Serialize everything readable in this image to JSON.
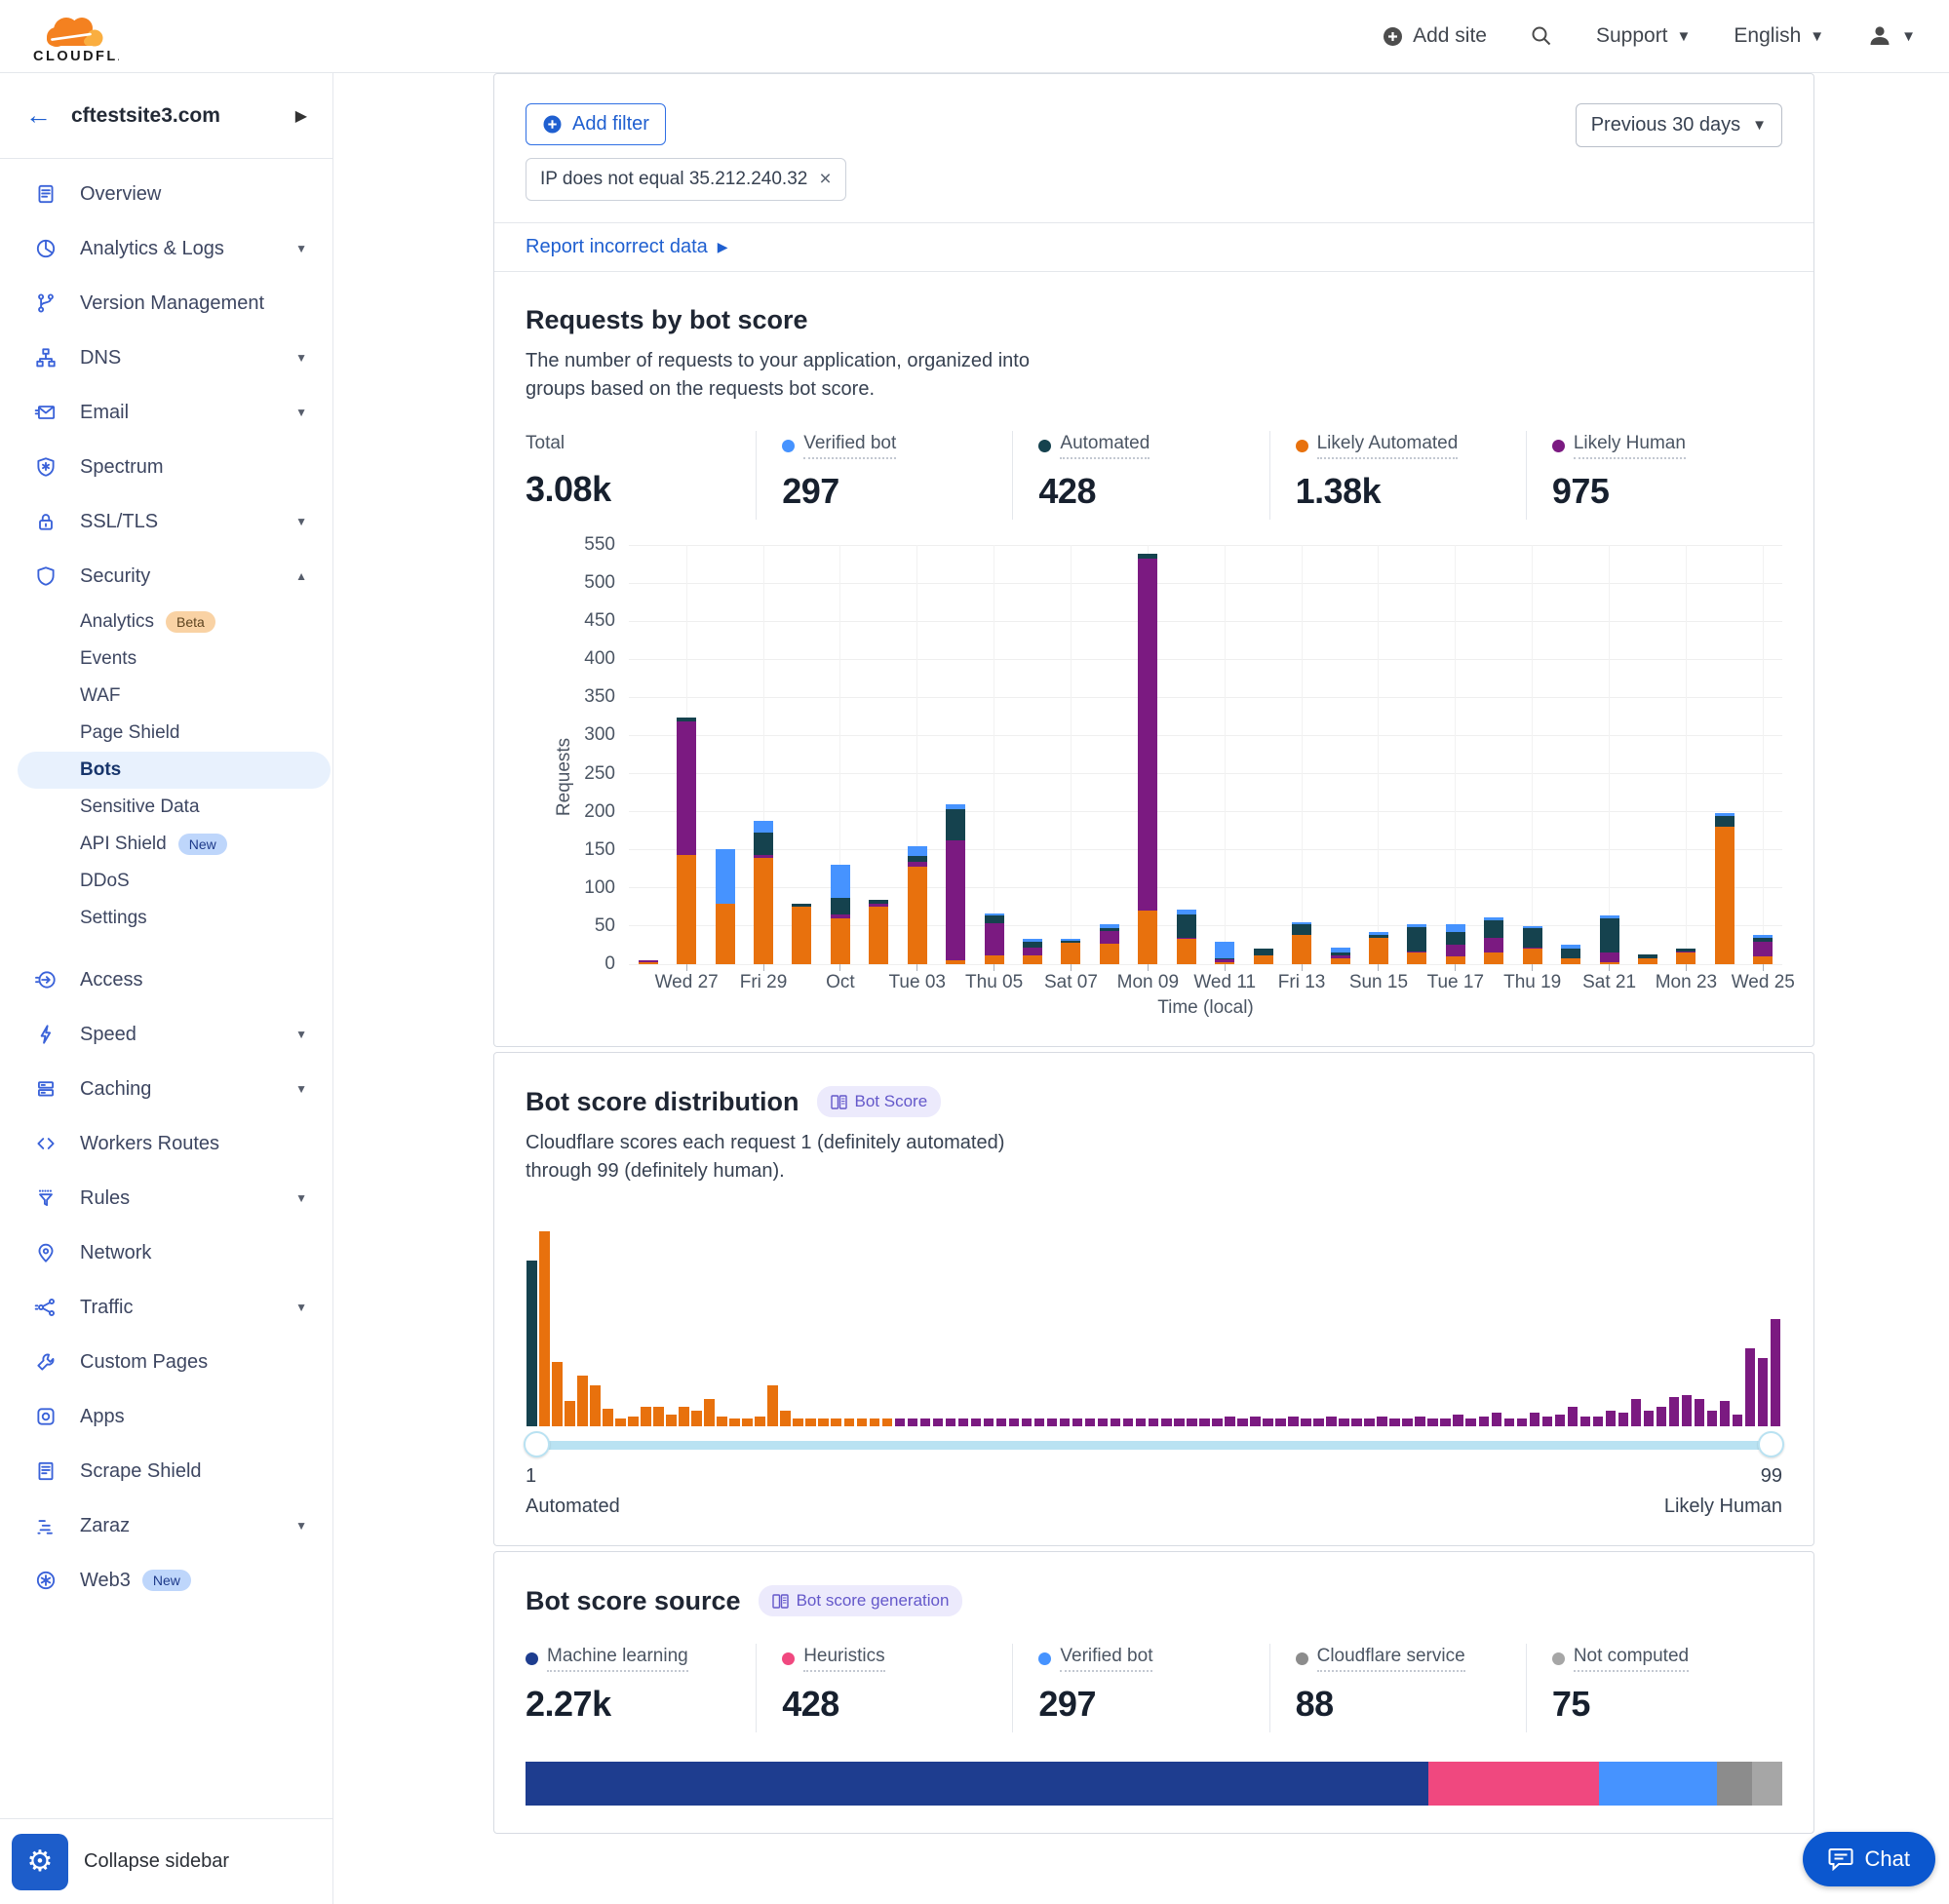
{
  "colors": {
    "verified_bot": "#4693ff",
    "automated": "#15424e",
    "likely_automated": "#e8710d",
    "likely_human": "#7b1a81",
    "machine_learning": "#1e3d8f",
    "heuristics": "#f0487f",
    "cf_service": "#8c8c8c",
    "not_computed": "#a6a6a6",
    "accent_blue": "#1f5fd0",
    "slider_track": "#b9e2f2"
  },
  "header": {
    "brand": "CLOUDFLARE",
    "add_site": "Add site",
    "support": "Support",
    "language": "English"
  },
  "sidebar": {
    "site": "cftestsite3.com",
    "collapse_label": "Collapse sidebar",
    "items": [
      {
        "label": "Overview",
        "icon": "clipboard"
      },
      {
        "label": "Analytics & Logs",
        "icon": "pie-chart",
        "chevron": "down"
      },
      {
        "label": "Version Management",
        "icon": "git-branch"
      },
      {
        "label": "DNS",
        "icon": "sitemap",
        "chevron": "down"
      },
      {
        "label": "Email",
        "icon": "envelope",
        "chevron": "down"
      },
      {
        "label": "Spectrum",
        "icon": "shield-star"
      },
      {
        "label": "SSL/TLS",
        "icon": "lock",
        "chevron": "down"
      },
      {
        "label": "Security",
        "icon": "shield",
        "chevron": "up",
        "children": [
          {
            "label": "Analytics",
            "badge": {
              "text": "Beta",
              "style": "beta"
            }
          },
          {
            "label": "Events"
          },
          {
            "label": "WAF"
          },
          {
            "label": "Page Shield"
          },
          {
            "label": "Bots",
            "selected": true
          },
          {
            "label": "Sensitive Data"
          },
          {
            "label": "API Shield",
            "badge": {
              "text": "New",
              "style": "new"
            }
          },
          {
            "label": "DDoS"
          },
          {
            "label": "Settings"
          }
        ]
      },
      {
        "label": "Access",
        "icon": "login-arrow",
        "gap": true
      },
      {
        "label": "Speed",
        "icon": "lightning",
        "chevron": "down"
      },
      {
        "label": "Caching",
        "icon": "server-stack",
        "chevron": "down"
      },
      {
        "label": "Workers Routes",
        "icon": "code-brackets"
      },
      {
        "label": "Rules",
        "icon": "funnel",
        "chevron": "down"
      },
      {
        "label": "Network",
        "icon": "map-pin"
      },
      {
        "label": "Traffic",
        "icon": "share-network",
        "chevron": "down"
      },
      {
        "label": "Custom Pages",
        "icon": "wrench"
      },
      {
        "label": "Apps",
        "icon": "app-window"
      },
      {
        "label": "Scrape Shield",
        "icon": "document"
      },
      {
        "label": "Zaraz",
        "icon": "stacked-bars",
        "chevron": "down"
      },
      {
        "label": "Web3",
        "icon": "snowflake",
        "badge": {
          "text": "New",
          "style": "new"
        }
      }
    ]
  },
  "filters": {
    "add_filter": "Add filter",
    "chip": "IP does not equal 35.212.240.32",
    "date_range": "Previous 30 days"
  },
  "report_link": "Report incorrect data",
  "requests": {
    "title": "Requests by bot score",
    "description": "The number of requests to your application, organized into groups based on the requests bot score.",
    "stats": [
      {
        "label": "Total",
        "value": "3.08k",
        "color": null
      },
      {
        "label": "Verified bot",
        "value": "297",
        "color": "verified_bot"
      },
      {
        "label": "Automated",
        "value": "428",
        "color": "automated"
      },
      {
        "label": "Likely Automated",
        "value": "1.38k",
        "color": "likely_automated"
      },
      {
        "label": "Likely Human",
        "value": "975",
        "color": "likely_human"
      }
    ]
  },
  "distribution": {
    "title": "Bot score distribution",
    "badge": "Bot Score",
    "description": "Cloudflare scores each request 1 (definitely automated) through 99 (definitely human).",
    "slider_min": "1",
    "slider_max": "99",
    "left_label": "Automated",
    "right_label": "Likely Human"
  },
  "source": {
    "title": "Bot score source",
    "badge": "Bot score generation",
    "stats": [
      {
        "label": "Machine learning",
        "value": "2.27k",
        "color": "machine_learning"
      },
      {
        "label": "Heuristics",
        "value": "428",
        "color": "heuristics"
      },
      {
        "label": "Verified bot",
        "value": "297",
        "color": "verified_bot"
      },
      {
        "label": "Cloudflare service",
        "value": "88",
        "color": "cf_service"
      },
      {
        "label": "Not computed",
        "value": "75",
        "color": "not_computed"
      }
    ]
  },
  "chat_label": "Chat",
  "chart_data": [
    {
      "type": "bar",
      "stacked": true,
      "title": "Requests by bot score",
      "xlabel": "Time (local)",
      "ylabel": "Requests",
      "ylim": [
        0,
        550
      ],
      "ytick_step": 50,
      "grid": true,
      "x_tick_labels": [
        "Wed 27",
        "Fri 29",
        "Oct",
        "Tue 03",
        "Thu 05",
        "Sat 07",
        "Mon 09",
        "Wed 11",
        "Fri 13",
        "Sun 15",
        "Tue 17",
        "Thu 19",
        "Sat 21",
        "Mon 23",
        "Wed 25"
      ],
      "labeled_bar_indices": [
        1,
        3,
        5,
        7,
        9,
        11,
        13,
        15,
        17,
        19,
        21,
        23,
        25,
        27,
        29
      ],
      "series": [
        {
          "name": "Likely Automated",
          "color_key": "likely_automated",
          "values": [
            3,
            143,
            79,
            140,
            75,
            60,
            76,
            128,
            5,
            11,
            11,
            28,
            27,
            70,
            33,
            3,
            12,
            38,
            8,
            35,
            15,
            10,
            15,
            20,
            8,
            3,
            8,
            15,
            180,
            10
          ]
        },
        {
          "name": "Likely Human",
          "color_key": "likely_human",
          "values": [
            2,
            175,
            0,
            3,
            0,
            5,
            3,
            6,
            158,
            43,
            11,
            0,
            16,
            462,
            2,
            3,
            0,
            0,
            3,
            0,
            2,
            15,
            20,
            2,
            0,
            12,
            0,
            2,
            0,
            20
          ]
        },
        {
          "name": "Automated",
          "color_key": "automated",
          "values": [
            0,
            5,
            0,
            30,
            4,
            22,
            5,
            8,
            40,
            10,
            7,
            3,
            5,
            6,
            30,
            2,
            8,
            14,
            5,
            3,
            31,
            17,
            22,
            25,
            12,
            45,
            5,
            3,
            15,
            5
          ]
        },
        {
          "name": "Verified bot",
          "color_key": "verified_bot",
          "values": [
            0,
            0,
            72,
            15,
            0,
            44,
            0,
            13,
            7,
            2,
            4,
            2,
            5,
            0,
            7,
            22,
            0,
            3,
            6,
            4,
            4,
            10,
            5,
            3,
            5,
            4,
            0,
            0,
            3,
            3
          ]
        }
      ]
    },
    {
      "type": "bar",
      "title": "Bot score distribution",
      "x_range": [
        1,
        99
      ],
      "note": "heights as percent of tallest bar",
      "segments": [
        {
          "name": "Automated",
          "from": 1,
          "to": 1,
          "color_key": "automated"
        },
        {
          "name": "Likely Automated",
          "from": 2,
          "to": 29,
          "color_key": "likely_automated"
        },
        {
          "name": "Likely Human",
          "from": 30,
          "to": 99,
          "color_key": "likely_human"
        }
      ],
      "values": [
        85,
        100,
        33,
        13,
        26,
        21,
        9,
        4,
        5,
        10,
        10,
        6,
        10,
        8,
        14,
        5,
        4,
        4,
        5,
        21,
        8,
        4,
        4,
        4,
        4,
        4,
        4,
        4,
        4,
        4,
        4,
        4,
        4,
        4,
        4,
        4,
        4,
        4,
        4,
        4,
        4,
        4,
        4,
        4,
        4,
        4,
        4,
        4,
        4,
        4,
        4,
        4,
        4,
        4,
        4,
        5,
        4,
        5,
        4,
        4,
        5,
        4,
        4,
        5,
        4,
        4,
        4,
        5,
        4,
        4,
        5,
        4,
        4,
        6,
        4,
        5,
        7,
        4,
        4,
        7,
        5,
        6,
        10,
        5,
        5,
        8,
        7,
        14,
        8,
        10,
        15,
        16,
        14,
        8,
        13,
        6,
        40,
        35,
        55
      ]
    },
    {
      "type": "bar",
      "stacked": true,
      "title": "Bot score source share",
      "segments": [
        {
          "name": "Machine learning",
          "value": 2270,
          "percent": 71.9,
          "color_key": "machine_learning"
        },
        {
          "name": "Heuristics",
          "value": 428,
          "percent": 13.6,
          "color_key": "heuristics"
        },
        {
          "name": "Verified bot",
          "value": 297,
          "percent": 9.4,
          "color_key": "verified_bot"
        },
        {
          "name": "Cloudflare service",
          "value": 88,
          "percent": 2.8,
          "color_key": "cf_service"
        },
        {
          "name": "Not computed",
          "value": 75,
          "percent": 2.4,
          "color_key": "not_computed"
        }
      ]
    }
  ]
}
